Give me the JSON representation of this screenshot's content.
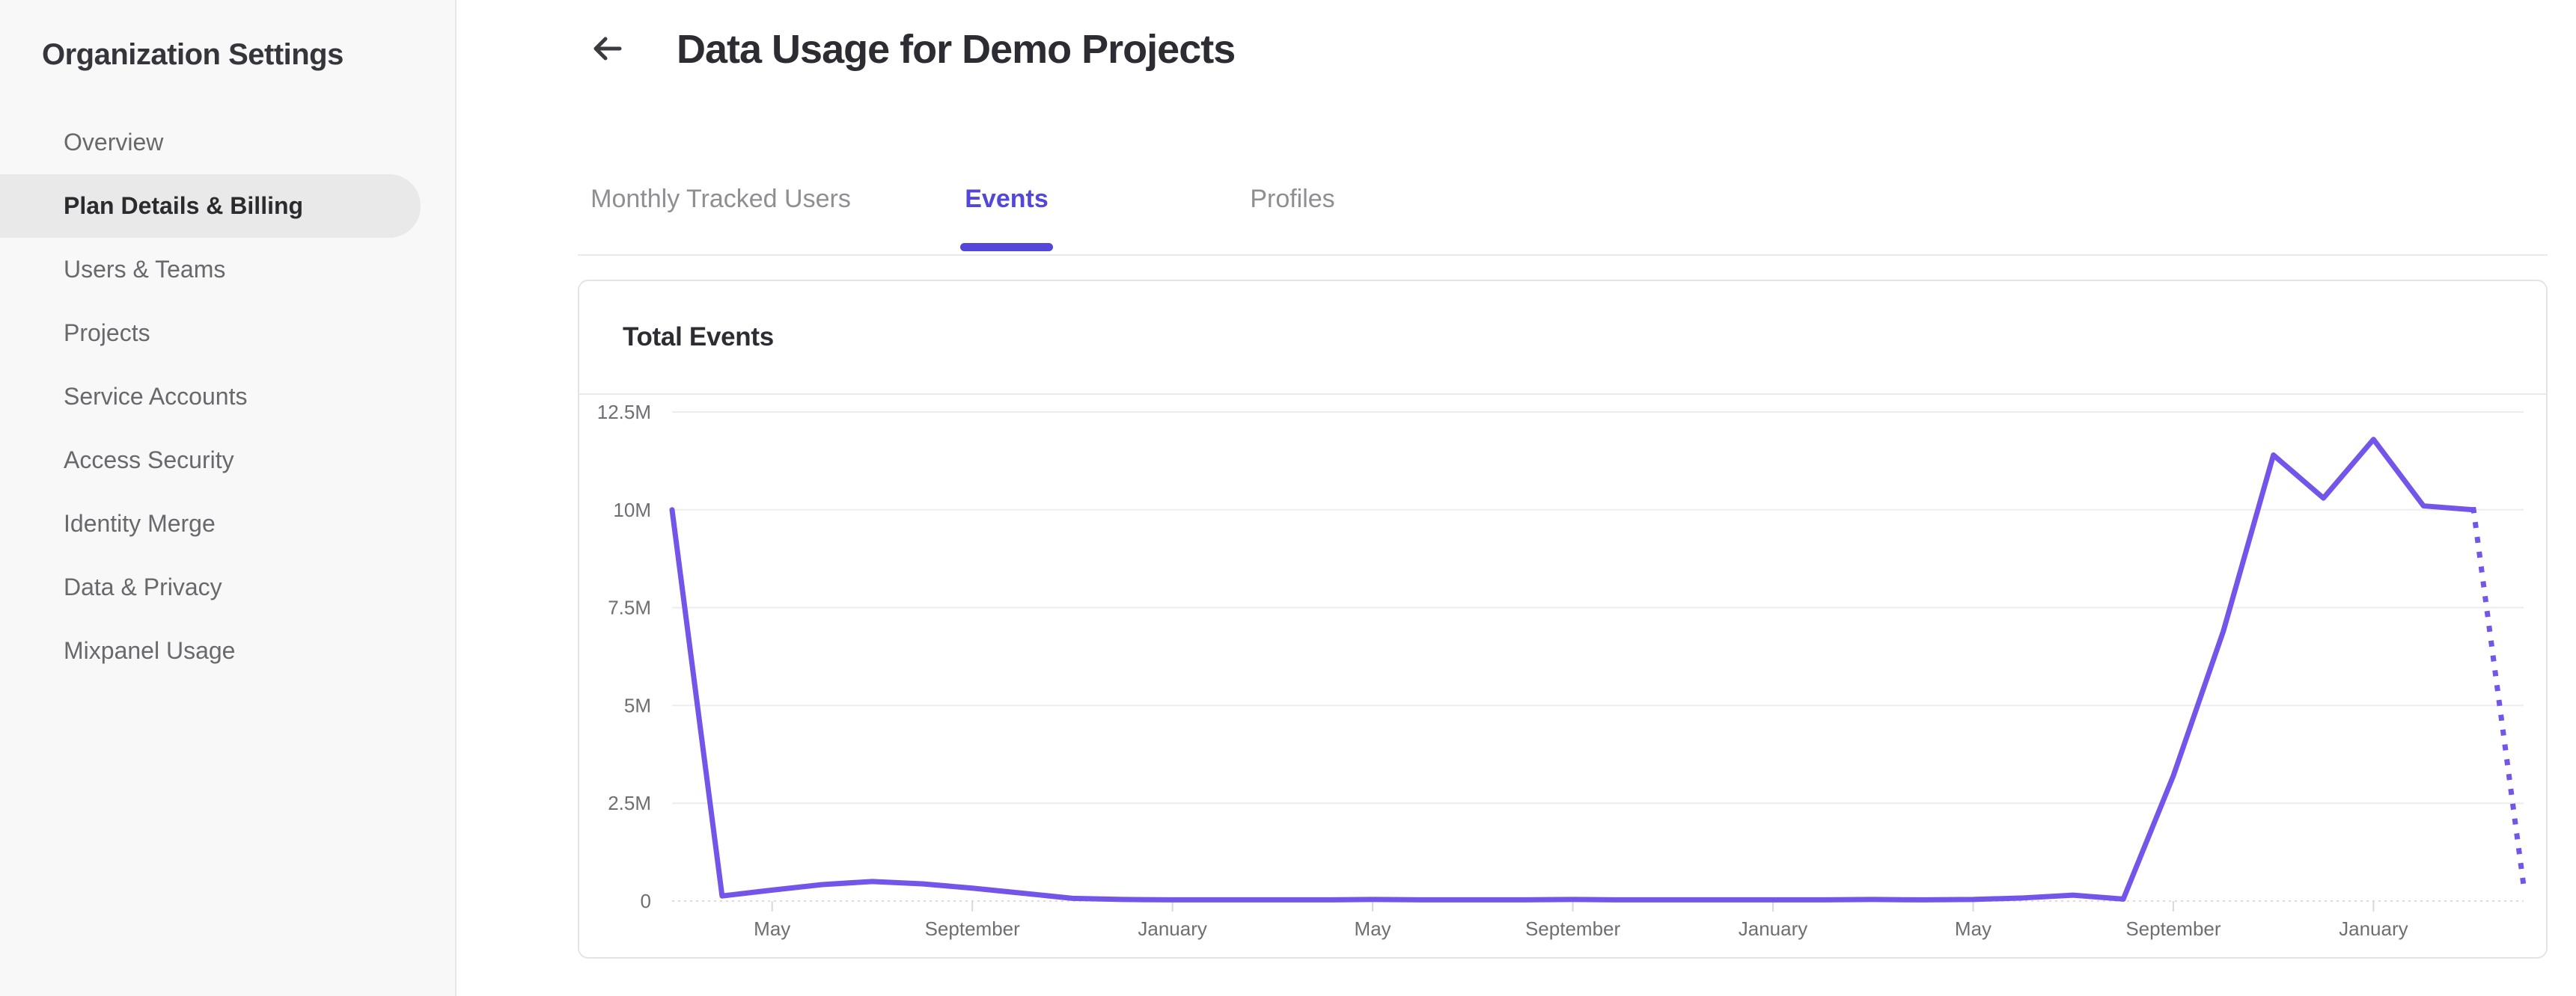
{
  "sidebar": {
    "title": "Organization Settings",
    "items": [
      {
        "label": "Overview",
        "selected": false
      },
      {
        "label": "Plan Details & Billing",
        "selected": true
      },
      {
        "label": "Users & Teams",
        "selected": false
      },
      {
        "label": "Projects",
        "selected": false
      },
      {
        "label": "Service Accounts",
        "selected": false
      },
      {
        "label": "Access Security",
        "selected": false
      },
      {
        "label": "Identity Merge",
        "selected": false
      },
      {
        "label": "Data & Privacy",
        "selected": false
      },
      {
        "label": "Mixpanel Usage",
        "selected": false
      }
    ]
  },
  "header": {
    "back_icon": "arrow-left",
    "title": "Data Usage for Demo Projects"
  },
  "tabs": [
    {
      "label": "Monthly Tracked Users",
      "active": false
    },
    {
      "label": "Events",
      "active": true
    },
    {
      "label": "Profiles",
      "active": false
    }
  ],
  "usage_card": {
    "title": "Total Events"
  },
  "colors": {
    "accent": "#5246db",
    "sidebar_bg": "#f8f8f8",
    "selected_item_bg": "#e9e9ea",
    "card_border": "#e4e4e6",
    "text_dark": "#2c2d33",
    "text_gray": "#68686d"
  },
  "chart_data": {
    "type": "line",
    "title": "Total Events",
    "series_name": "Total Events",
    "unit": "events per month (millions)",
    "months": 38,
    "x_range_note": "monthly points from two months before first May label to three months after last January label",
    "values_millions": [
      10,
      0.13,
      0.28,
      0.42,
      0.5,
      0.44,
      0.33,
      0.2,
      0.07,
      0.04,
      0.03,
      0.03,
      0.03,
      0.03,
      0.04,
      0.03,
      0.03,
      0.03,
      0.04,
      0.03,
      0.03,
      0.03,
      0.03,
      0.03,
      0.04,
      0.03,
      0.04,
      0.08,
      0.15,
      0.05,
      3.2,
      6.9,
      11.4,
      10.3,
      11.8,
      10.1,
      10.0,
      0.4
    ],
    "projected_last_segment": true,
    "ylim": [
      0,
      12.5
    ],
    "y_ticks": [
      {
        "v": 12.5,
        "label": "12.5M"
      },
      {
        "v": 10,
        "label": "10M"
      },
      {
        "v": 7.5,
        "label": "7.5M"
      },
      {
        "v": 5,
        "label": "5M"
      },
      {
        "v": 2.5,
        "label": "2.5M"
      },
      {
        "v": 0,
        "label": "0"
      }
    ],
    "x_tick_labels": [
      {
        "index": 2,
        "label": "May"
      },
      {
        "index": 6,
        "label": "September"
      },
      {
        "index": 10,
        "label": "January"
      },
      {
        "index": 14,
        "label": "May"
      },
      {
        "index": 18,
        "label": "September"
      },
      {
        "index": 22,
        "label": "January"
      },
      {
        "index": 26,
        "label": "May"
      },
      {
        "index": 30,
        "label": "September"
      },
      {
        "index": 34,
        "label": "January"
      }
    ],
    "grid": true,
    "legend": false,
    "colors": {
      "line": "#7355ea",
      "grid": "#ededef",
      "axis": "#dcdcde",
      "tick": "#d9d9db",
      "label": "#6e6e73"
    }
  }
}
